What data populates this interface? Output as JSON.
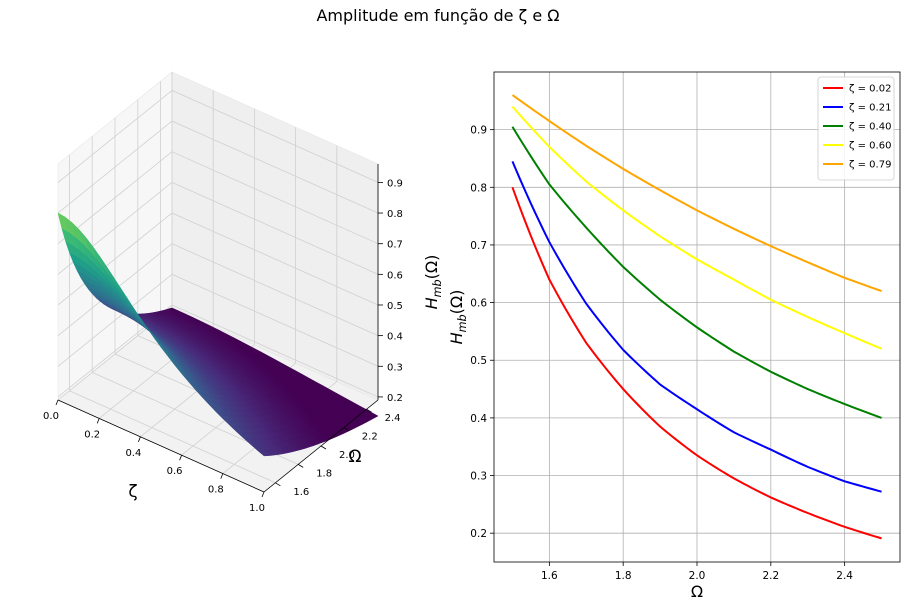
{
  "figure": {
    "suptitle": "Amplitude em função de ζ e Ω"
  },
  "chart_data": [
    {
      "type": "surface3d",
      "colormap": "viridis",
      "xlabel": "ζ",
      "ylabel": "Ω",
      "zlabel": "H_mb(Ω)",
      "x_ticks": [
        "0.0",
        "0.2",
        "0.4",
        "0.6",
        "0.8",
        "1.0"
      ],
      "y_ticks": [
        "1.6",
        "1.8",
        "2.0",
        "2.2",
        "2.4"
      ],
      "z_ticks": [
        "0.2",
        "0.3",
        "0.4",
        "0.5",
        "0.6",
        "0.7",
        "0.8",
        "0.9"
      ],
      "xlim": [
        0,
        1
      ],
      "ylim": [
        1.5,
        2.5
      ],
      "zlim": [
        0.19,
        0.96
      ],
      "grid": true
    },
    {
      "type": "line",
      "xlabel": "Ω",
      "ylabel": "H_mb(Ω)",
      "xlim": [
        1.45,
        2.55
      ],
      "ylim": [
        0.15,
        1.0
      ],
      "x_ticks": [
        "1.6",
        "1.8",
        "2.0",
        "2.2",
        "2.4"
      ],
      "y_ticks": [
        "0.2",
        "0.3",
        "0.4",
        "0.5",
        "0.6",
        "0.7",
        "0.8",
        "0.9"
      ],
      "grid": true,
      "legend_position": "top-right",
      "x": [
        1.5,
        1.6,
        1.7,
        1.8,
        1.9,
        2.0,
        2.1,
        2.2,
        2.3,
        2.4,
        2.5
      ],
      "series": [
        {
          "name": "ζ = 0.02",
          "color": "#ff0000",
          "values": [
            0.8,
            0.64,
            0.53,
            0.45,
            0.385,
            0.335,
            0.295,
            0.262,
            0.235,
            0.211,
            0.191
          ]
        },
        {
          "name": "ζ = 0.21",
          "color": "#0000ff",
          "values": [
            0.845,
            0.705,
            0.598,
            0.518,
            0.458,
            0.415,
            0.375,
            0.345,
            0.315,
            0.29,
            0.272
          ]
        },
        {
          "name": "ζ = 0.40",
          "color": "#008000",
          "values": [
            0.905,
            0.805,
            0.73,
            0.662,
            0.605,
            0.557,
            0.515,
            0.48,
            0.45,
            0.424,
            0.4
          ]
        },
        {
          "name": "ζ = 0.60",
          "color": "#ffff00",
          "values": [
            0.94,
            0.87,
            0.81,
            0.76,
            0.715,
            0.675,
            0.64,
            0.605,
            0.575,
            0.547,
            0.52
          ]
        },
        {
          "name": "ζ = 0.79",
          "color": "#ffa500",
          "values": [
            0.96,
            0.915,
            0.872,
            0.832,
            0.795,
            0.76,
            0.728,
            0.698,
            0.67,
            0.643,
            0.62
          ]
        }
      ]
    }
  ]
}
